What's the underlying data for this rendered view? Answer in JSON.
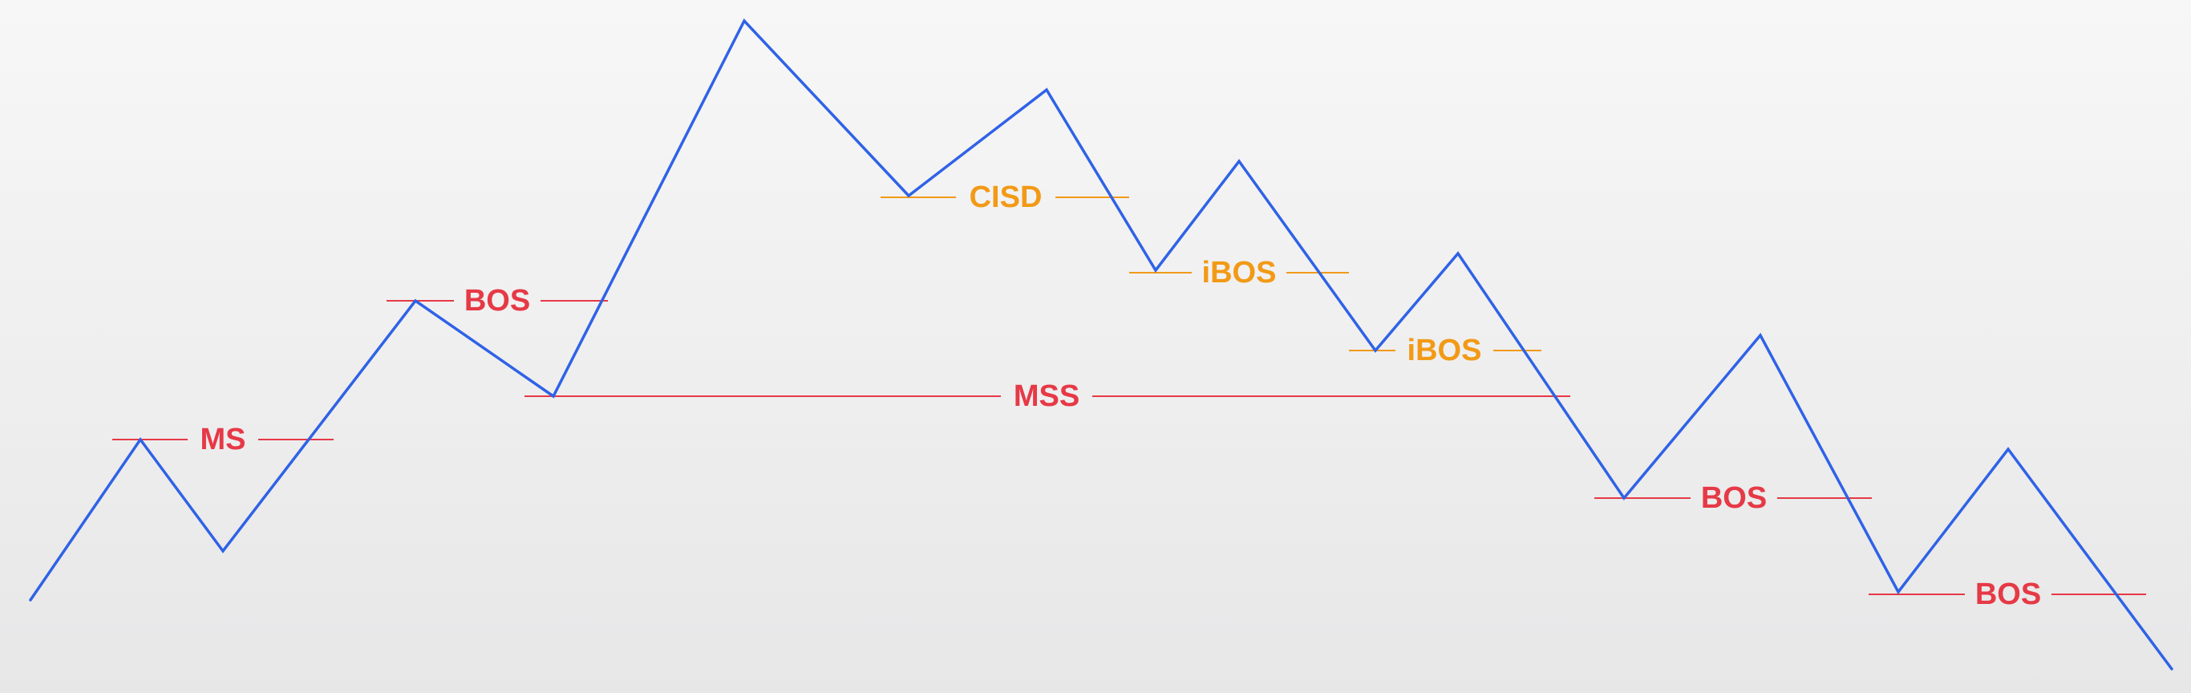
{
  "colors": {
    "price_line": "#2f62e6",
    "structure_label": "#e63946",
    "inducement_label": "#f29a16"
  },
  "levels": [
    {
      "id": "ms",
      "label": "MS",
      "kind": "structure"
    },
    {
      "id": "bos-1",
      "label": "BOS",
      "kind": "structure"
    },
    {
      "id": "mss",
      "label": "MSS",
      "kind": "structure"
    },
    {
      "id": "cisd",
      "label": "CISD",
      "kind": "inducement"
    },
    {
      "id": "ibos-1",
      "label": "iBOS",
      "kind": "inducement"
    },
    {
      "id": "ibos-2",
      "label": "iBOS",
      "kind": "inducement"
    },
    {
      "id": "bos-2",
      "label": "BOS",
      "kind": "structure"
    },
    {
      "id": "bos-3",
      "label": "BOS",
      "kind": "structure"
    }
  ]
}
